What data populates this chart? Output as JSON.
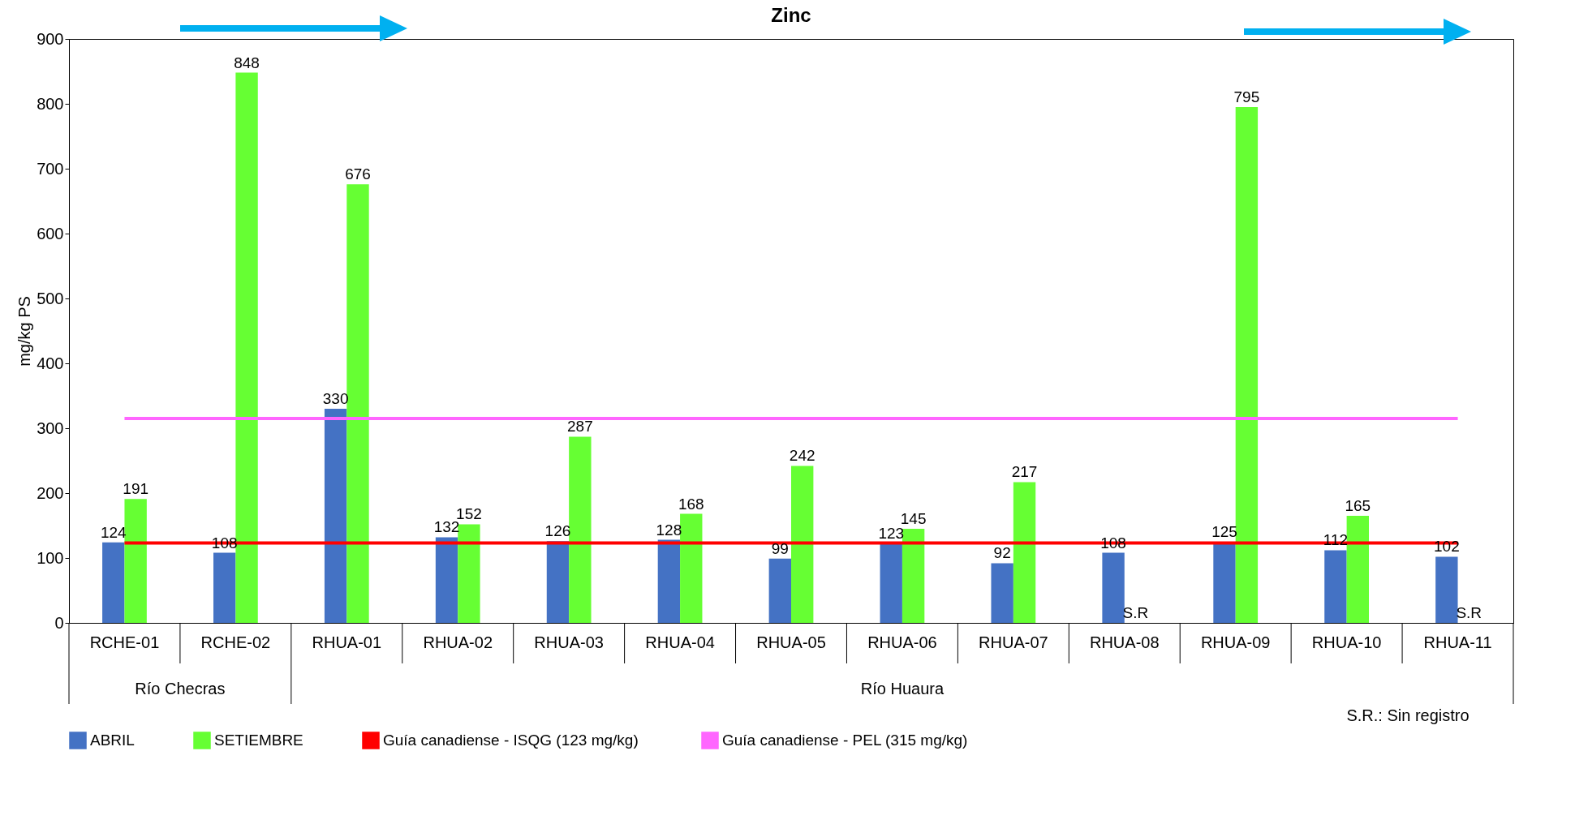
{
  "chart_data": {
    "type": "bar",
    "title": "Zinc",
    "ylabel": "mg/kg PS",
    "categories": [
      "RCHE-01",
      "RCHE-02",
      "RHUA-01",
      "RHUA-02",
      "RHUA-03",
      "RHUA-04",
      "RHUA-05",
      "RHUA-06",
      "RHUA-07",
      "RHUA-08",
      "RHUA-09",
      "RHUA-10",
      "RHUA-11"
    ],
    "series": [
      {
        "name": "ABRIL",
        "color": "#4472c4",
        "values": [
          124,
          108,
          330,
          132,
          126,
          128,
          99,
          123,
          92,
          108,
          125,
          112,
          102
        ],
        "value_labels": [
          "124",
          "108",
          "330",
          "132",
          "126",
          "128",
          "99",
          "123",
          "92",
          "108",
          "125",
          "112",
          "102"
        ]
      },
      {
        "name": "SETIEMBRE",
        "color": "#66ff33",
        "values": [
          191,
          848,
          676,
          152,
          287,
          168,
          242,
          145,
          217,
          null,
          795,
          165,
          null
        ],
        "value_labels": [
          "191",
          "848",
          "676",
          "152",
          "287",
          "168",
          "242",
          "145",
          "217",
          "S.R",
          "795",
          "165",
          "S.R"
        ]
      }
    ],
    "ylim": [
      0,
      900
    ],
    "yticks": [
      0,
      100,
      200,
      300,
      400,
      500,
      600,
      700,
      800,
      900
    ],
    "ref_lines": [
      {
        "axis": "y",
        "value": 123,
        "label": "Guía canadiense -  ISQG (123 mg/kg)",
        "color": "#ff0000"
      },
      {
        "axis": "y",
        "value": 315,
        "label": "Guía canadiense - PEL (315 mg/kg)",
        "color": "#ff66ff"
      }
    ],
    "annotations": [
      "Río Checras",
      "Río Huaura",
      "S.R.: Sin registro"
    ],
    "legend": "bottom",
    "grid": false
  }
}
